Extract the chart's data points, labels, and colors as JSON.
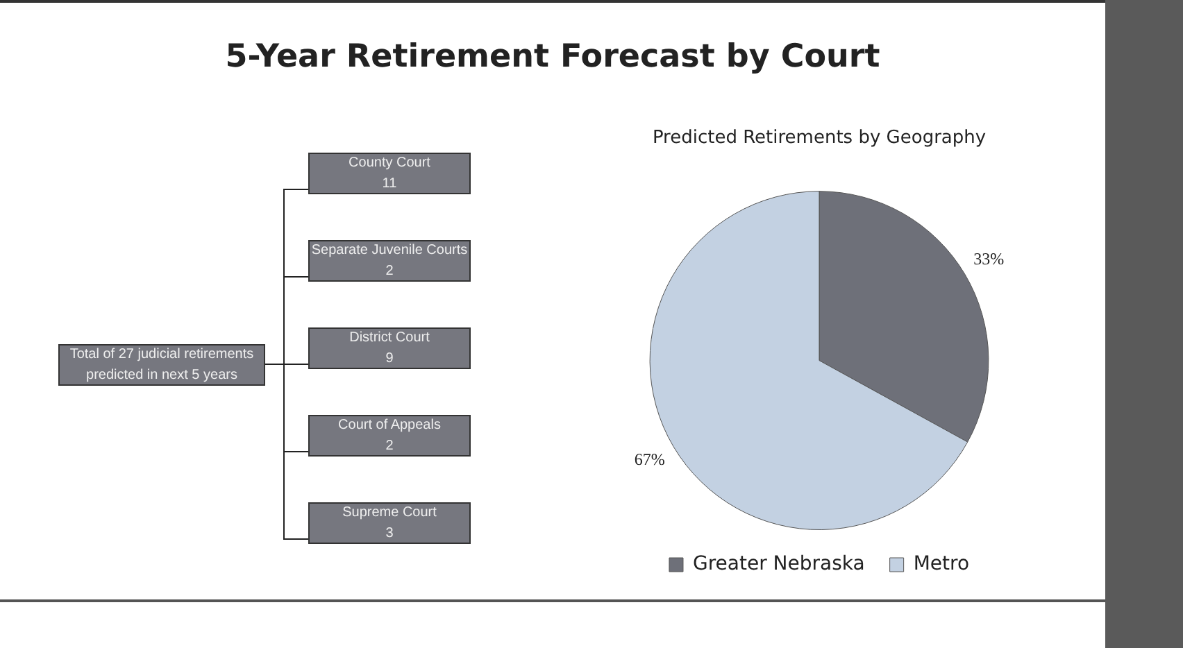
{
  "chart_data": [
    {
      "type": "other",
      "title": "5-Year Retirement Forecast by Court",
      "annotations": [
        "Total of 27 judicial retirements predicted in next 5 years"
      ],
      "categories": [
        "County Court",
        "Separate Juvenile Courts",
        "District Court",
        "Court of Appeals",
        "Supreme Court"
      ],
      "values": [
        11,
        2,
        9,
        2,
        3
      ],
      "data_labels": true
    },
    {
      "type": "pie",
      "title": "Predicted Retirements by Geography",
      "categories": [
        "Greater Nebraska",
        "Metro"
      ],
      "values": [
        33,
        67
      ],
      "colors": [
        "#6e7079",
        "#c3d1e2"
      ],
      "value_labels": [
        "33%",
        "67%"
      ],
      "legend": "bottom"
    }
  ]
}
